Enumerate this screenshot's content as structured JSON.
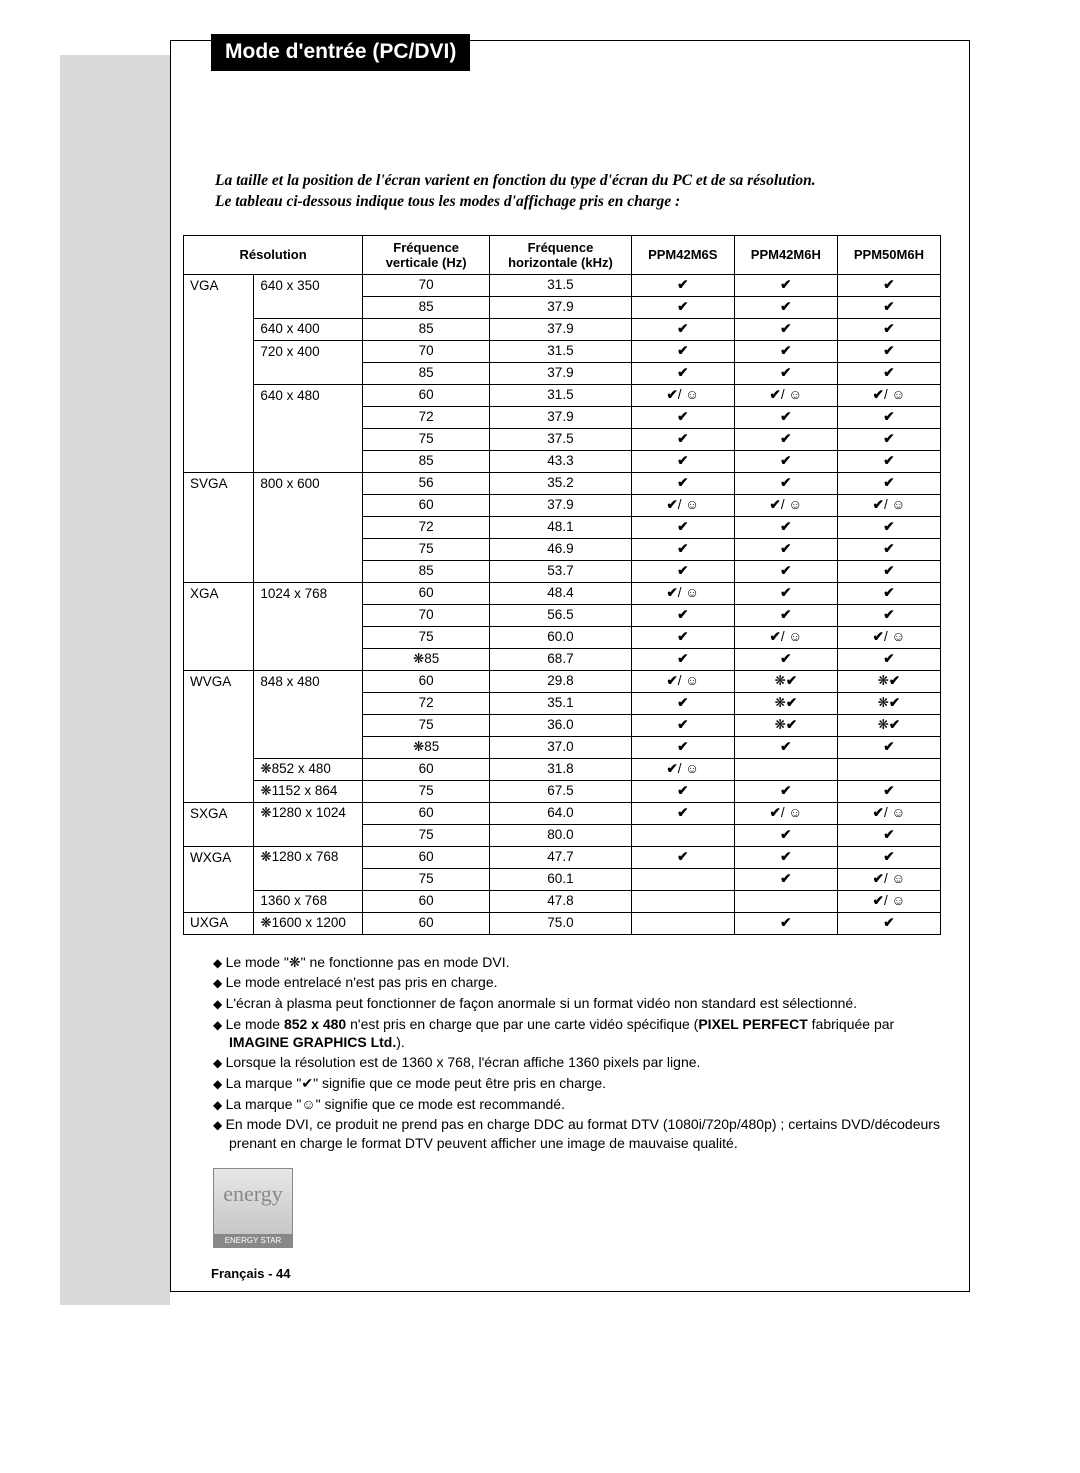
{
  "title": "Mode d'entrée (PC/DVI)",
  "intro_line1": "La taille et la position de l'écran varient en fonction du type d'écran du PC et de sa résolution.",
  "intro_line2": "Le tableau ci-dessous indique tous les modes d'affichage pris en charge :",
  "columns": {
    "c0": "Résolution",
    "c1": "Fréquence\nverticale (Hz)",
    "c2": "Fréquence\nhorizontale (kHz)",
    "c3": "PPM42M6S",
    "c4": "PPM42M6H",
    "c5": "PPM50M6H"
  },
  "symbols": {
    "check": "✔",
    "smile": "☺",
    "snow": "❋"
  },
  "rows": [
    {
      "group": "VGA",
      "res": "640 x 350",
      "vf": "70",
      "hf": "31.5",
      "a": "c",
      "b": "c",
      "c": "c",
      "gstart": true,
      "rstart": true
    },
    {
      "group": "",
      "res": "",
      "vf": "85",
      "hf": "37.9",
      "a": "c",
      "b": "c",
      "c": "c"
    },
    {
      "group": "",
      "res": "640 x 400",
      "vf": "85",
      "hf": "37.9",
      "a": "c",
      "b": "c",
      "c": "c",
      "rstart": true
    },
    {
      "group": "",
      "res": "720 x 400",
      "vf": "70",
      "hf": "31.5",
      "a": "c",
      "b": "c",
      "c": "c",
      "rstart": true
    },
    {
      "group": "",
      "res": "",
      "vf": "85",
      "hf": "37.9",
      "a": "c",
      "b": "c",
      "c": "c"
    },
    {
      "group": "",
      "res": "640 x 480",
      "vf": "60",
      "hf": "31.5",
      "a": "cs",
      "b": "cs",
      "c": "cs",
      "rstart": true
    },
    {
      "group": "",
      "res": "",
      "vf": "72",
      "hf": "37.9",
      "a": "c",
      "b": "c",
      "c": "c"
    },
    {
      "group": "",
      "res": "",
      "vf": "75",
      "hf": "37.5",
      "a": "c",
      "b": "c",
      "c": "c"
    },
    {
      "group": "",
      "res": "",
      "vf": "85",
      "hf": "43.3",
      "a": "c",
      "b": "c",
      "c": "c"
    },
    {
      "group": "SVGA",
      "res": "800 x 600",
      "vf": "56",
      "hf": "35.2",
      "a": "c",
      "b": "c",
      "c": "c",
      "gstart": true,
      "rstart": true
    },
    {
      "group": "",
      "res": "",
      "vf": "60",
      "hf": "37.9",
      "a": "cs",
      "b": "cs",
      "c": "cs"
    },
    {
      "group": "",
      "res": "",
      "vf": "72",
      "hf": "48.1",
      "a": "c",
      "b": "c",
      "c": "c"
    },
    {
      "group": "",
      "res": "",
      "vf": "75",
      "hf": "46.9",
      "a": "c",
      "b": "c",
      "c": "c"
    },
    {
      "group": "",
      "res": "",
      "vf": "85",
      "hf": "53.7",
      "a": "c",
      "b": "c",
      "c": "c"
    },
    {
      "group": "XGA",
      "res": "1024 x 768",
      "vf": "60",
      "hf": "48.4",
      "a": "cs",
      "b": "c",
      "c": "c",
      "gstart": true,
      "rstart": true
    },
    {
      "group": "",
      "res": "",
      "vf": "70",
      "hf": "56.5",
      "a": "c",
      "b": "c",
      "c": "c"
    },
    {
      "group": "",
      "res": "",
      "vf": "75",
      "hf": "60.0",
      "a": "c",
      "b": "cs",
      "c": "cs"
    },
    {
      "group": "",
      "res": "",
      "vf": "❋85",
      "hf": "68.7",
      "a": "c",
      "b": "c",
      "c": "c"
    },
    {
      "group": "WVGA",
      "res": "848 x 480",
      "vf": "60",
      "hf": "29.8",
      "a": "cs",
      "b": "sc",
      "c": "sc",
      "gstart": true,
      "rstart": true
    },
    {
      "group": "",
      "res": "",
      "vf": "72",
      "hf": "35.1",
      "a": "c",
      "b": "sc",
      "c": "sc"
    },
    {
      "group": "",
      "res": "",
      "vf": "75",
      "hf": "36.0",
      "a": "c",
      "b": "sc",
      "c": "sc"
    },
    {
      "group": "",
      "res": "",
      "vf": "❋85",
      "hf": "37.0",
      "a": "c",
      "b": "c",
      "c": "c"
    },
    {
      "group": "",
      "res": "❋852 x 480",
      "vf": "60",
      "hf": "31.8",
      "a": "cs",
      "b": "",
      "c": "",
      "rstart": true
    },
    {
      "group": "",
      "res": "❋1152 x 864",
      "vf": "75",
      "hf": "67.5",
      "a": "c",
      "b": "c",
      "c": "c",
      "rstart": true
    },
    {
      "group": "SXGA",
      "res": "❋1280 x 1024",
      "vf": "60",
      "hf": "64.0",
      "a": "c",
      "b": "cs",
      "c": "cs",
      "gstart": true,
      "rstart": true
    },
    {
      "group": "",
      "res": "",
      "vf": "75",
      "hf": "80.0",
      "a": "",
      "b": "c",
      "c": "c"
    },
    {
      "group": "WXGA",
      "res": "❋1280 x 768",
      "vf": "60",
      "hf": "47.7",
      "a": "c",
      "b": "c",
      "c": "c",
      "gstart": true,
      "rstart": true
    },
    {
      "group": "",
      "res": "",
      "vf": "75",
      "hf": "60.1",
      "a": "",
      "b": "c",
      "c": "cs"
    },
    {
      "group": "",
      "res": "1360 x 768",
      "vf": "60",
      "hf": "47.8",
      "a": "",
      "b": "",
      "c": "cs",
      "rstart": true
    },
    {
      "group": "UXGA",
      "res": "❋1600 x 1200",
      "vf": "60",
      "hf": "75.0",
      "a": "",
      "b": "c",
      "c": "c",
      "gstart": true,
      "rstart": true
    }
  ],
  "notes": [
    "Le mode \"❋\" ne fonctionne pas en mode DVI.",
    "Le mode entrelacé n'est pas pris en charge.",
    "L'écran à plasma peut fonctionner de façon anormale si un format vidéo non standard est sélectionné.",
    "Le mode <b>852 x 480</b> n'est pris en charge que par une carte vidéo spécifique (<b>PIXEL PERFECT</b> fabriquée par <b>IMAGINE GRAPHICS Ltd.</b>).",
    "Lorsque la résolution est de 1360 x 768, l'écran affiche 1360 pixels par ligne.",
    "La marque \"✔\" signifie que ce mode peut être pris en charge.",
    "La marque \"☺\" signifie que ce mode est recommandé.",
    "En mode DVI, ce produit ne prend pas en charge DDC au format DTV (1080i/720p/480p) ; certains DVD/décodeurs prenant en charge le format DTV peuvent afficher une image de mauvaise qualité."
  ],
  "energy_top": "energy",
  "energy_bottom": "ENERGY STAR",
  "footer": "Français - 44"
}
